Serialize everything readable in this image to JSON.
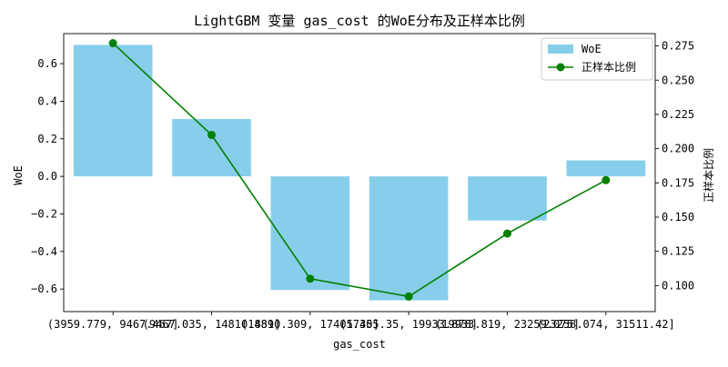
{
  "chart_data": {
    "type": "bar",
    "title": "LightGBM 变量 gas_cost 的WoE分布及正样本比例",
    "xlabel": "gas_cost",
    "ylabel": "WoE",
    "y2label": "正样本比例",
    "categories": [
      "(3959.779, 9467.467]",
      "(9467.035, 14810.889]",
      "(14810.309, 17405.35]",
      "(17405.35, 19933.878]",
      "(19933.819, 23259.075]",
      "(23258.074, 31511.42]"
    ],
    "series": [
      {
        "name": "WoE",
        "type": "bar",
        "axis": "left",
        "color": "#87ceeb",
        "values": [
          0.7,
          0.305,
          -0.605,
          -0.66,
          -0.235,
          0.085
        ]
      },
      {
        "name": "正样本比例",
        "type": "line",
        "axis": "right",
        "color": "#008000",
        "values": [
          0.277,
          0.21,
          0.105,
          0.092,
          0.138,
          0.177
        ]
      }
    ],
    "ylim": [
      -0.72,
      0.76
    ],
    "y2lim": [
      0.081,
      0.284
    ],
    "yticks": [
      -0.6,
      -0.4,
      -0.2,
      0.0,
      0.2,
      0.4,
      0.6
    ],
    "yticklabels": [
      "−0.6",
      "−0.4",
      "−0.2",
      "0.0",
      "0.2",
      "0.4",
      "0.6"
    ],
    "y2ticks": [
      0.1,
      0.125,
      0.15,
      0.175,
      0.2,
      0.225,
      0.25,
      0.275
    ],
    "y2ticklabels": [
      "0.100",
      "0.125",
      "0.150",
      "0.175",
      "0.200",
      "0.225",
      "0.250",
      "0.275"
    ],
    "legend": {
      "placement": "top-right",
      "entries": [
        "WoE",
        "正样本比例"
      ]
    },
    "grid": false
  }
}
